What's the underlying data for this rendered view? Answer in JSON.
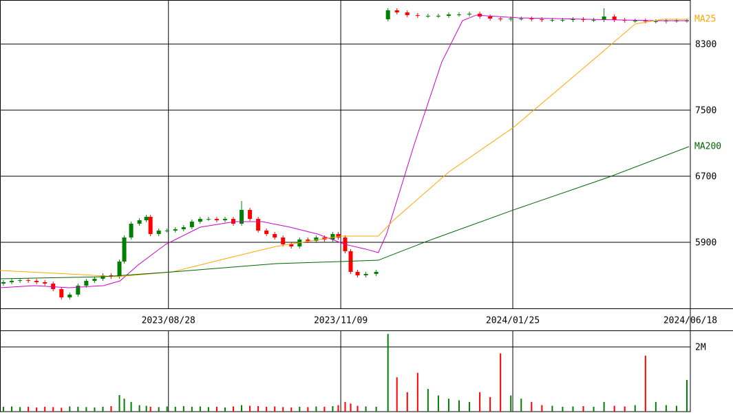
{
  "chart_data": {
    "type": "candlestick",
    "x": [
      1.25,
      4.25,
      7.25,
      10.25,
      13.25,
      16.25,
      19.25,
      22.25,
      25.25,
      28.25,
      31.25,
      34.25,
      37.25,
      40.25,
      43.25,
      45,
      47.5,
      50.5,
      53,
      54.5,
      57.5,
      60.5,
      63.5,
      66.5,
      69.5,
      72.5,
      75.5,
      78.5,
      81.5,
      84.5,
      87.5,
      90.5,
      93.5,
      96.5,
      99.5,
      102.5,
      105.5,
      108.5,
      111.5,
      114.5,
      117.5,
      120.5,
      122.5,
      125,
      127,
      129.5,
      132.5,
      136.25,
      140.5,
      143.75,
      147.5,
      151.25,
      155,
      158.75,
      162.5,
      166.25,
      170,
      173.75,
      177.5,
      181.25,
      185,
      188.75,
      192.5,
      196.25,
      200,
      203.75,
      207.5,
      211.25,
      215,
      218.75,
      222.5,
      226.25,
      230,
      233.75,
      237.5,
      241.25,
      245,
      248.75
    ],
    "open": [
      5400,
      5417,
      5433,
      5441,
      5433,
      5417,
      5400,
      5333,
      5233,
      5267,
      5375,
      5433,
      5458,
      5500,
      5483,
      5667,
      5958,
      6125,
      6167,
      6208,
      6000,
      6042,
      6042,
      6058,
      6083,
      6150,
      6183,
      6183,
      6167,
      6183,
      6125,
      6292,
      6183,
      6042,
      6000,
      5958,
      5875,
      5850,
      5933,
      5917,
      5958,
      5933,
      6000,
      5958,
      5792,
      5542,
      5500,
      5517,
      8600,
      8708,
      8683,
      8650,
      8641,
      8641,
      8641,
      8658,
      8658,
      8667,
      8633,
      8608,
      8600,
      8608,
      8608,
      8600,
      8591,
      8591,
      8591,
      8600,
      8591,
      8591,
      8633,
      8591,
      8583,
      8583,
      8575,
      8575,
      8583,
      8583
    ],
    "high": [
      5442,
      5458,
      5466,
      5466,
      5458,
      5442,
      5425,
      5358,
      5292,
      5400,
      5458,
      5483,
      5525,
      5525,
      5692,
      5983,
      6150,
      6192,
      6233,
      6233,
      6067,
      6067,
      6083,
      6108,
      6175,
      6208,
      6208,
      6208,
      6208,
      6208,
      6400,
      6317,
      6208,
      6067,
      6025,
      5983,
      5900,
      5958,
      5958,
      5983,
      5983,
      6025,
      6025,
      5983,
      5817,
      5567,
      5542,
      5567,
      8733,
      8733,
      8708,
      8675,
      8666,
      8666,
      8683,
      8683,
      8692,
      8692,
      8658,
      8633,
      8633,
      8633,
      8633,
      8625,
      8616,
      8616,
      8625,
      8625,
      8616,
      8733,
      8658,
      8616,
      8608,
      8608,
      8600,
      8608,
      8608,
      8608
    ],
    "low": [
      5375,
      5392,
      5408,
      5408,
      5392,
      5375,
      5308,
      5208,
      5208,
      5242,
      5350,
      5408,
      5433,
      5458,
      5458,
      5642,
      5933,
      6100,
      6142,
      5975,
      5975,
      6017,
      6017,
      6033,
      6058,
      6125,
      6158,
      6142,
      6142,
      6100,
      6100,
      6158,
      6017,
      5975,
      5933,
      5850,
      5825,
      5825,
      5892,
      5892,
      5908,
      5908,
      5933,
      5767,
      5517,
      5475,
      5475,
      5492,
      8575,
      8658,
      8625,
      8616,
      8616,
      8616,
      8616,
      8633,
      8633,
      8608,
      8583,
      8575,
      8575,
      8583,
      8575,
      8566,
      8566,
      8566,
      8566,
      8566,
      8566,
      8566,
      8566,
      8558,
      8558,
      8550,
      8550,
      8550,
      8558,
      8558
    ],
    "close": [
      5417,
      5433,
      5441,
      5433,
      5417,
      5400,
      5333,
      5233,
      5267,
      5375,
      5433,
      5458,
      5500,
      5483,
      5667,
      5958,
      6125,
      6167,
      6208,
      6000,
      6042,
      6042,
      6058,
      6083,
      6150,
      6183,
      6183,
      6167,
      6183,
      6125,
      6292,
      6183,
      6042,
      6000,
      5958,
      5875,
      5850,
      5933,
      5917,
      5958,
      5933,
      6000,
      5958,
      5792,
      5542,
      5500,
      5517,
      5542,
      8708,
      8683,
      8650,
      8641,
      8641,
      8641,
      8658,
      8658,
      8667,
      8633,
      8608,
      8600,
      8608,
      8608,
      8600,
      8591,
      8591,
      8591,
      8600,
      8591,
      8591,
      8633,
      8591,
      8583,
      8583,
      8575,
      8575,
      8583,
      8583,
      8583
    ],
    "up_color": "#008000",
    "down_color": "#ff0000",
    "xlim": [
      0,
      250
    ],
    "xticks": [
      {
        "value": 61,
        "label": "2023/08/28"
      },
      {
        "value": 123.4,
        "label": "2023/11/09"
      },
      {
        "value": 185.7,
        "label": "2024/01/25"
      },
      {
        "value": 250,
        "label": "2024/06/18"
      }
    ],
    "ylim": [
      5100,
      8833
    ],
    "yticks": [
      8300,
      7500,
      6700,
      5900
    ],
    "grid": true,
    "lines": [
      {
        "color": "#cc00cc",
        "x": [
          0,
          12.5,
          25,
          37.5,
          43.5,
          50,
          60,
          72.5,
          85,
          95,
          105,
          115,
          125,
          132.5,
          137,
          140,
          150,
          160,
          167.5,
          172.5,
          187.5,
          212.5,
          237.5,
          249.5
        ],
        "values": [
          5350,
          5375,
          5350,
          5375,
          5433,
          5625,
          5875,
          6083,
          6150,
          6150,
          6083,
          6000,
          5875,
          5817,
          5775,
          6000,
          7083,
          8083,
          8583,
          8650,
          8617,
          8600,
          8583,
          8583
        ]
      },
      {
        "name": "MA25",
        "color": "#ffa500",
        "x": [
          0,
          25,
          42.5,
          62.5,
          82.5,
          100,
          112.5,
          123.5,
          137,
          142.5,
          162.5,
          186,
          212.5,
          230,
          240,
          249.5
        ],
        "values": [
          5558,
          5517,
          5483,
          5542,
          5708,
          5850,
          5917,
          5975,
          5975,
          6167,
          6750,
          7292,
          8042,
          8542,
          8600,
          8600
        ]
      },
      {
        "name": "MA200",
        "color": "#006400",
        "x": [
          0,
          37.5,
          62.5,
          100,
          123.5,
          137,
          155,
          186,
          220,
          249.5
        ],
        "values": [
          5458,
          5483,
          5542,
          5642,
          5667,
          5683,
          5917,
          6292,
          6683,
          7058
        ]
      }
    ],
    "volume": {
      "values": [
        150000,
        160000,
        140000,
        150000,
        130000,
        150000,
        140000,
        120000,
        160000,
        150000,
        140000,
        130000,
        150000,
        170000,
        510000,
        400000,
        300000,
        200000,
        180000,
        150000,
        140000,
        160000,
        150000,
        170000,
        150000,
        160000,
        140000,
        150000,
        130000,
        160000,
        200000,
        180000,
        170000,
        150000,
        160000,
        140000,
        130000,
        150000,
        140000,
        160000,
        150000,
        170000,
        200000,
        300000,
        250000,
        180000,
        160000,
        150000,
        2400000,
        1060000,
        600000,
        1200000,
        700000,
        500000,
        400000,
        350000,
        300000,
        600000,
        450000,
        1800000,
        500000,
        400000,
        300000,
        200000,
        180000,
        150000,
        160000,
        170000,
        150000,
        300000,
        180000,
        160000,
        200000,
        1730000,
        300000,
        200000,
        180000,
        980000
      ],
      "ylim": [
        0,
        2510000
      ],
      "yticks": [
        {
          "value": 2000000,
          "label": "2M"
        }
      ]
    }
  }
}
